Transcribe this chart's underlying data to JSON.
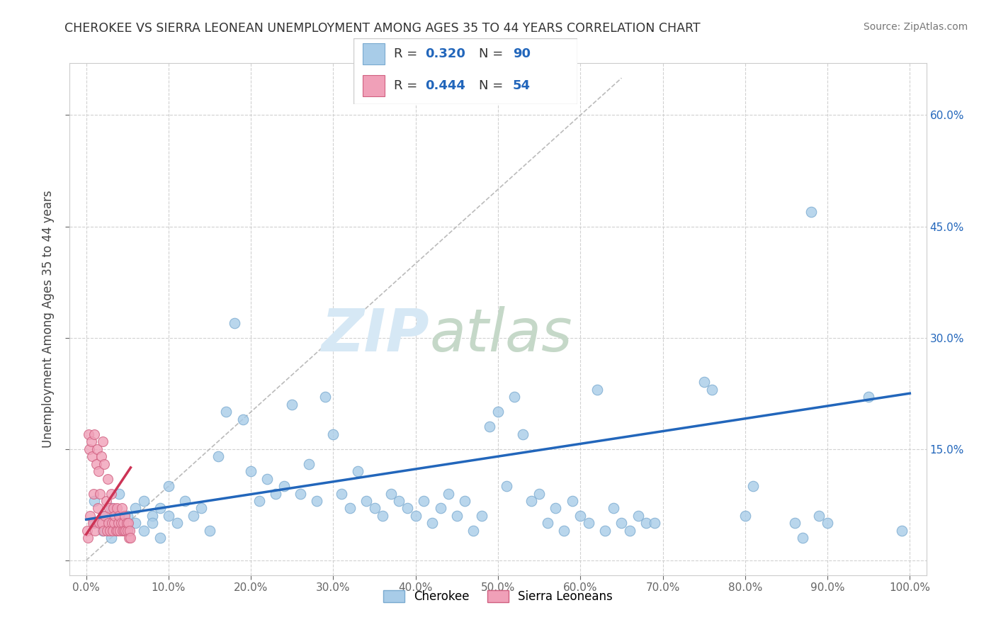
{
  "title": "CHEROKEE VS SIERRA LEONEAN UNEMPLOYMENT AMONG AGES 35 TO 44 YEARS CORRELATION CHART",
  "source": "Source: ZipAtlas.com",
  "ylabel": "Unemployment Among Ages 35 to 44 years",
  "xlim": [
    -0.02,
    1.02
  ],
  "ylim": [
    -0.02,
    0.67
  ],
  "xticks": [
    0.0,
    0.1,
    0.2,
    0.3,
    0.4,
    0.5,
    0.6,
    0.7,
    0.8,
    0.9,
    1.0
  ],
  "xticklabels": [
    "0.0%",
    "10.0%",
    "20.0%",
    "30.0%",
    "40.0%",
    "50.0%",
    "60.0%",
    "70.0%",
    "80.0%",
    "90.0%",
    "100.0%"
  ],
  "yticks": [
    0.0,
    0.15,
    0.3,
    0.45,
    0.6
  ],
  "left_yticklabels": [
    "",
    "",
    "",
    "",
    ""
  ],
  "right_yticklabels": [
    "",
    "15.0%",
    "30.0%",
    "45.0%",
    "60.0%"
  ],
  "cherokee_color": "#A8CCE8",
  "cherokee_edge": "#7AAAD0",
  "sierra_color": "#F0A0B8",
  "sierra_edge": "#D06080",
  "trend_cherokee_color": "#2266BB",
  "trend_sierra_color": "#CC3355",
  "diagonal_color": "#BBBBBB",
  "background_color": "#FFFFFF",
  "legend_cherokee_label": "Cherokee",
  "legend_sierra_label": "Sierra Leoneans",
  "R_cherokee": 0.32,
  "N_cherokee": 90,
  "R_sierra": 0.444,
  "N_sierra": 54,
  "cherokee_x": [
    0.01,
    0.01,
    0.02,
    0.02,
    0.03,
    0.03,
    0.04,
    0.04,
    0.05,
    0.05,
    0.06,
    0.06,
    0.07,
    0.07,
    0.08,
    0.08,
    0.09,
    0.09,
    0.1,
    0.1,
    0.11,
    0.12,
    0.13,
    0.14,
    0.15,
    0.16,
    0.17,
    0.18,
    0.19,
    0.2,
    0.21,
    0.22,
    0.23,
    0.24,
    0.25,
    0.26,
    0.27,
    0.28,
    0.29,
    0.3,
    0.31,
    0.32,
    0.33,
    0.34,
    0.35,
    0.36,
    0.37,
    0.38,
    0.39,
    0.4,
    0.41,
    0.42,
    0.43,
    0.44,
    0.45,
    0.46,
    0.47,
    0.48,
    0.49,
    0.5,
    0.51,
    0.52,
    0.53,
    0.54,
    0.55,
    0.56,
    0.57,
    0.58,
    0.59,
    0.6,
    0.61,
    0.62,
    0.63,
    0.64,
    0.65,
    0.66,
    0.67,
    0.68,
    0.69,
    0.75,
    0.76,
    0.8,
    0.81,
    0.86,
    0.87,
    0.88,
    0.89,
    0.9,
    0.95,
    0.99
  ],
  "cherokee_y": [
    0.05,
    0.08,
    0.06,
    0.04,
    0.07,
    0.03,
    0.05,
    0.09,
    0.04,
    0.06,
    0.07,
    0.05,
    0.08,
    0.04,
    0.06,
    0.05,
    0.07,
    0.03,
    0.06,
    0.1,
    0.05,
    0.08,
    0.06,
    0.07,
    0.04,
    0.14,
    0.2,
    0.32,
    0.19,
    0.12,
    0.08,
    0.11,
    0.09,
    0.1,
    0.21,
    0.09,
    0.13,
    0.08,
    0.22,
    0.17,
    0.09,
    0.07,
    0.12,
    0.08,
    0.07,
    0.06,
    0.09,
    0.08,
    0.07,
    0.06,
    0.08,
    0.05,
    0.07,
    0.09,
    0.06,
    0.08,
    0.04,
    0.06,
    0.18,
    0.2,
    0.1,
    0.22,
    0.17,
    0.08,
    0.09,
    0.05,
    0.07,
    0.04,
    0.08,
    0.06,
    0.05,
    0.23,
    0.04,
    0.07,
    0.05,
    0.04,
    0.06,
    0.05,
    0.05,
    0.24,
    0.23,
    0.06,
    0.1,
    0.05,
    0.03,
    0.47,
    0.06,
    0.05,
    0.22,
    0.04
  ],
  "sierra_x": [
    0.001,
    0.002,
    0.003,
    0.004,
    0.005,
    0.006,
    0.007,
    0.008,
    0.009,
    0.01,
    0.011,
    0.012,
    0.013,
    0.014,
    0.015,
    0.016,
    0.017,
    0.018,
    0.019,
    0.02,
    0.021,
    0.022,
    0.023,
    0.024,
    0.025,
    0.026,
    0.027,
    0.028,
    0.029,
    0.03,
    0.031,
    0.032,
    0.033,
    0.034,
    0.035,
    0.036,
    0.037,
    0.038,
    0.039,
    0.04,
    0.041,
    0.042,
    0.043,
    0.044,
    0.045,
    0.046,
    0.047,
    0.048,
    0.049,
    0.05,
    0.051,
    0.052,
    0.053,
    0.054
  ],
  "sierra_y": [
    0.04,
    0.03,
    0.17,
    0.15,
    0.06,
    0.16,
    0.14,
    0.05,
    0.09,
    0.17,
    0.04,
    0.13,
    0.15,
    0.07,
    0.12,
    0.05,
    0.09,
    0.14,
    0.05,
    0.16,
    0.04,
    0.13,
    0.06,
    0.08,
    0.04,
    0.11,
    0.05,
    0.07,
    0.04,
    0.09,
    0.05,
    0.04,
    0.07,
    0.05,
    0.06,
    0.04,
    0.07,
    0.04,
    0.05,
    0.06,
    0.04,
    0.05,
    0.07,
    0.04,
    0.05,
    0.04,
    0.06,
    0.04,
    0.05,
    0.04,
    0.05,
    0.03,
    0.04,
    0.03
  ],
  "cherokee_trend_x0": 0.0,
  "cherokee_trend_x1": 1.0,
  "cherokee_trend_y0": 0.055,
  "cherokee_trend_y1": 0.225,
  "sierra_trend_x0": 0.0,
  "sierra_trend_x1": 0.054,
  "sierra_trend_y0": 0.035,
  "sierra_trend_y1": 0.125
}
